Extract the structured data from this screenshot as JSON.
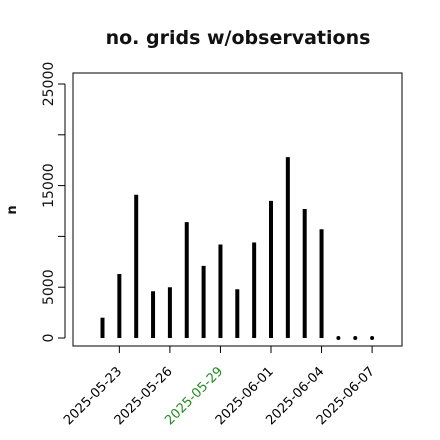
{
  "chart_data": {
    "type": "bar",
    "title": "no. grids w/observations",
    "xlabel": "",
    "ylabel": "n",
    "ylim": [
      0,
      25000
    ],
    "yticks": [
      0,
      5000,
      15000,
      25000
    ],
    "dates": [
      "2025-05-22",
      "2025-05-23",
      "2025-05-24",
      "2025-05-25",
      "2025-05-26",
      "2025-05-27",
      "2025-05-28",
      "2025-05-29",
      "2025-05-30",
      "2025-05-31",
      "2025-06-01",
      "2025-06-02",
      "2025-06-03",
      "2025-06-04",
      "2025-06-05",
      "2025-06-06",
      "2025-06-07"
    ],
    "values": [
      2000,
      6300,
      14100,
      4600,
      5000,
      11400,
      7100,
      9200,
      4800,
      9400,
      13500,
      17800,
      12700,
      10700,
      0,
      0,
      0
    ],
    "zero_marker_dates": [
      "2025-06-05",
      "2025-06-06",
      "2025-06-07"
    ],
    "xticks": [
      {
        "date": "2025-05-23",
        "label": "2025-05-23",
        "color": "#000000"
      },
      {
        "date": "2025-05-26",
        "label": "2025-05-26",
        "color": "#000000"
      },
      {
        "date": "2025-05-29",
        "label": "2025-05-29",
        "color": "#228B22"
      },
      {
        "date": "2025-06-01",
        "label": "2025-06-01",
        "color": "#000000"
      },
      {
        "date": "2025-06-04",
        "label": "2025-06-04",
        "color": "#000000"
      },
      {
        "date": "2025-06-07",
        "label": "2025-06-07",
        "color": "#000000"
      }
    ],
    "bar_color": "#000000",
    "grid": false,
    "legend": "none"
  }
}
